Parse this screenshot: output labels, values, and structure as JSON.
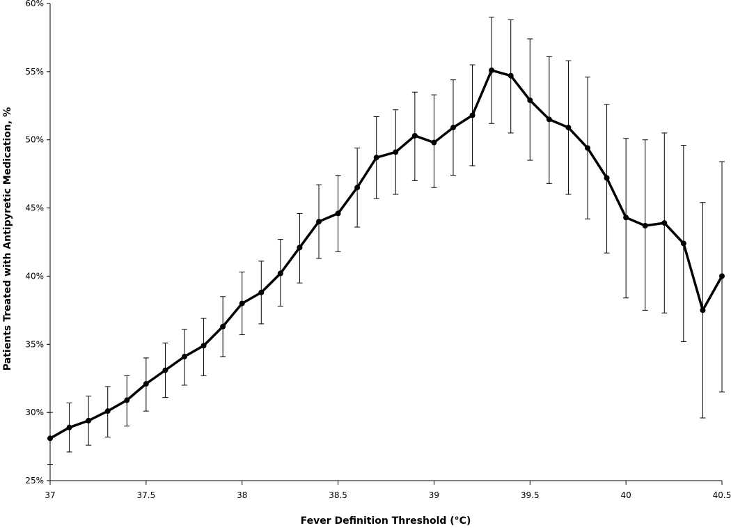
{
  "chart_data": {
    "type": "line",
    "xlabel": "Fever Definition Threshold (°C)",
    "ylabel": "Patients Treated with Antipyretic Medication, %",
    "xlim": [
      37,
      40.5
    ],
    "ylim": [
      25,
      60
    ],
    "x_ticks": [
      37,
      37.5,
      38,
      38.5,
      39,
      39.5,
      40,
      40.5
    ],
    "x_tick_labels": [
      "37",
      "37.5",
      "38",
      "38.5",
      "39",
      "39.5",
      "40",
      "40.5"
    ],
    "y_ticks": [
      25,
      30,
      35,
      40,
      45,
      50,
      55,
      60
    ],
    "y_tick_labels": [
      "25%",
      "30%",
      "35%",
      "40%",
      "45%",
      "50%",
      "55%",
      "60%"
    ],
    "grid": false,
    "legend": "none",
    "series": [
      {
        "color": "#000000",
        "x": [
          37.0,
          37.1,
          37.2,
          37.3,
          37.4,
          37.5,
          37.6,
          37.7,
          37.8,
          37.9,
          38.0,
          38.1,
          38.2,
          38.3,
          38.4,
          38.5,
          38.6,
          38.7,
          38.8,
          38.9,
          39.0,
          39.1,
          39.2,
          39.3,
          39.4,
          39.5,
          39.6,
          39.7,
          39.8,
          39.9,
          40.0,
          40.1,
          40.2,
          40.3,
          40.4,
          40.5
        ],
        "y": [
          28.1,
          28.9,
          29.4,
          30.1,
          30.9,
          32.1,
          33.1,
          34.1,
          34.9,
          36.3,
          38.0,
          38.8,
          40.2,
          42.1,
          44.0,
          44.6,
          46.5,
          48.7,
          49.1,
          50.3,
          49.8,
          50.9,
          51.8,
          55.1,
          54.7,
          52.9,
          51.5,
          50.9,
          49.4,
          47.2,
          44.3,
          43.7,
          43.9,
          42.4,
          37.5,
          40.0
        ],
        "y_low": [
          26.2,
          27.1,
          27.6,
          28.2,
          29.0,
          30.1,
          31.1,
          32.0,
          32.7,
          34.1,
          35.7,
          36.5,
          37.8,
          39.5,
          41.3,
          41.8,
          43.6,
          45.7,
          46.0,
          47.0,
          46.5,
          47.4,
          48.1,
          51.2,
          50.5,
          48.5,
          46.8,
          46.0,
          44.2,
          41.7,
          38.4,
          37.5,
          37.3,
          35.2,
          29.6,
          31.5
        ],
        "y_high": [
          30.0,
          30.7,
          31.2,
          31.9,
          32.7,
          34.0,
          35.1,
          36.1,
          36.9,
          38.5,
          40.3,
          41.1,
          42.7,
          44.6,
          46.7,
          47.4,
          49.4,
          51.7,
          52.2,
          53.5,
          53.3,
          54.4,
          55.5,
          59.0,
          58.8,
          57.4,
          56.1,
          55.8,
          54.6,
          52.6,
          50.1,
          50.0,
          50.5,
          49.6,
          45.4,
          48.4
        ]
      }
    ]
  }
}
